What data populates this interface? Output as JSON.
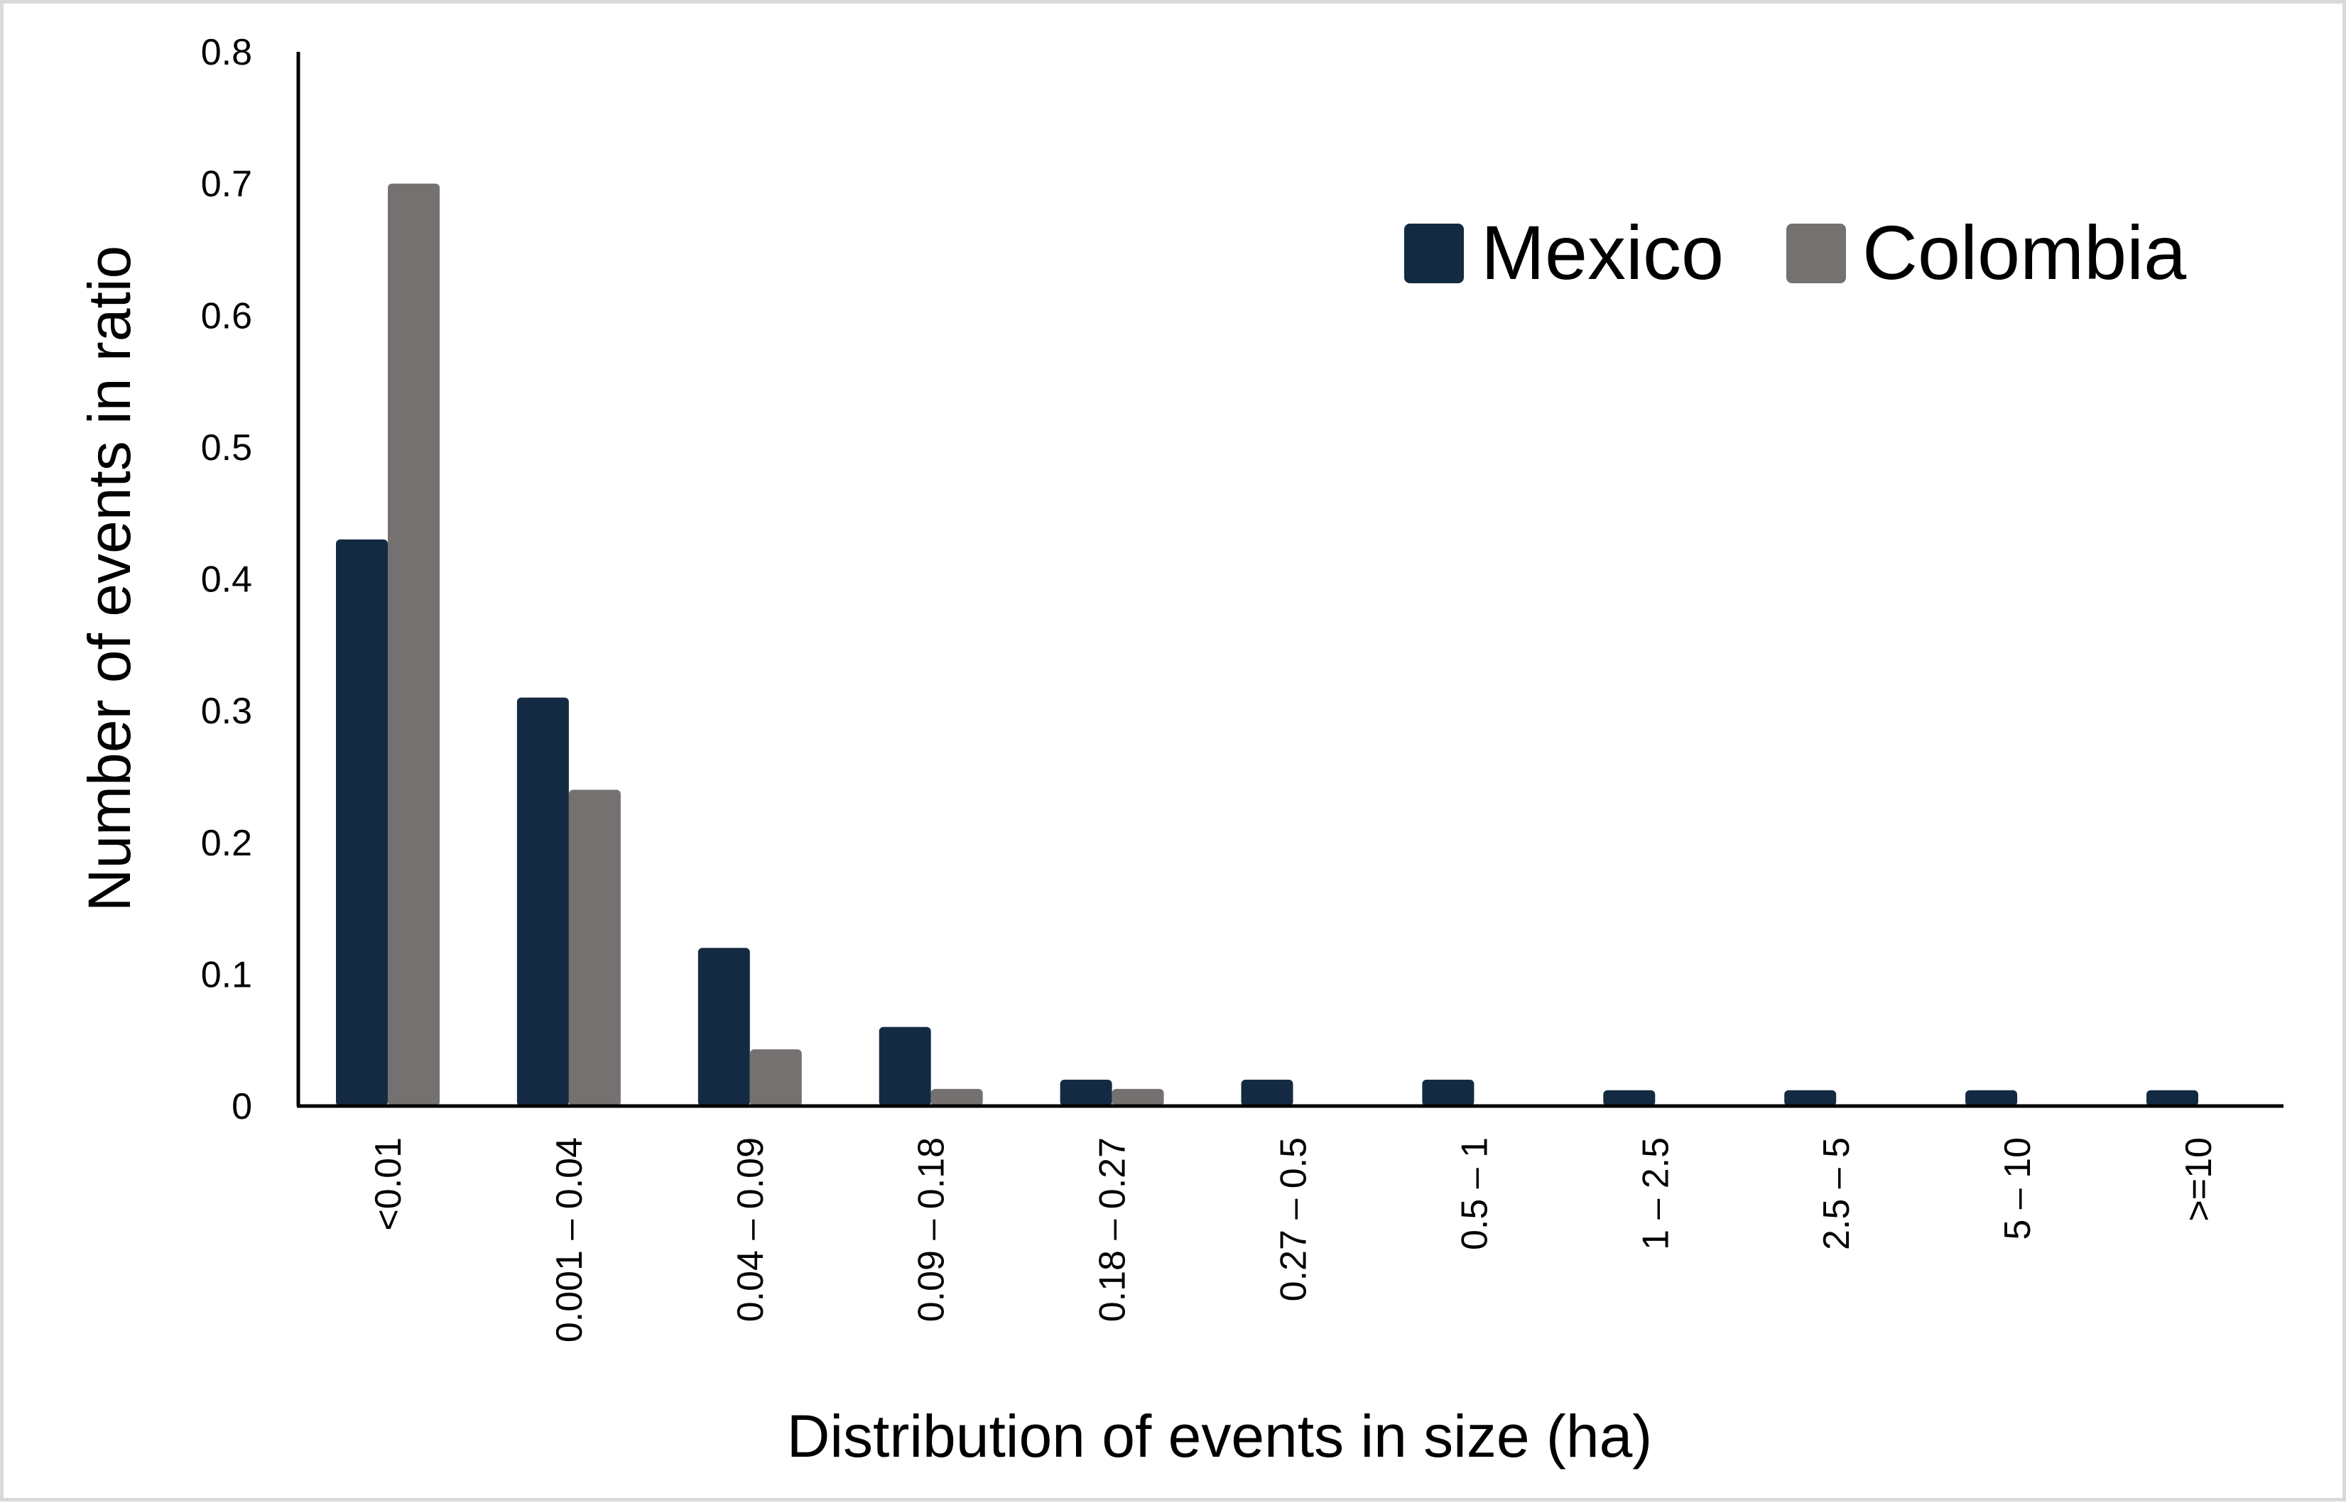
{
  "chart_data": {
    "type": "bar",
    "title": "",
    "xlabel": "Distribution of events in size (ha)",
    "ylabel": "Number of events in ratio",
    "categories": [
      "<0.01",
      "0.001 – 0.04",
      "0.04 – 0.09",
      "0.09 – 0.18",
      "0.18 – 0.27",
      "0.27 – 0.5",
      "0.5 – 1",
      "1 – 2.5",
      "2.5 – 5",
      "5 – 10",
      ">=10"
    ],
    "series": [
      {
        "name": "Mexico",
        "color": "#142a43",
        "values": [
          0.43,
          0.31,
          0.12,
          0.06,
          0.02,
          0.02,
          0.02,
          0.012,
          0.012,
          0.012,
          0.012
        ]
      },
      {
        "name": "Colombia",
        "color": "#767171",
        "values": [
          0.7,
          0.24,
          0.043,
          0.013,
          0.013,
          0,
          0,
          0,
          0,
          0,
          0
        ]
      }
    ],
    "yticks": [
      "0",
      "0.1",
      "0.2",
      "0.3",
      "0.4",
      "0.5",
      "0.6",
      "0.7",
      "0.8"
    ],
    "ylim": [
      0,
      0.8
    ],
    "grid": false,
    "legend_position": "top-right"
  }
}
